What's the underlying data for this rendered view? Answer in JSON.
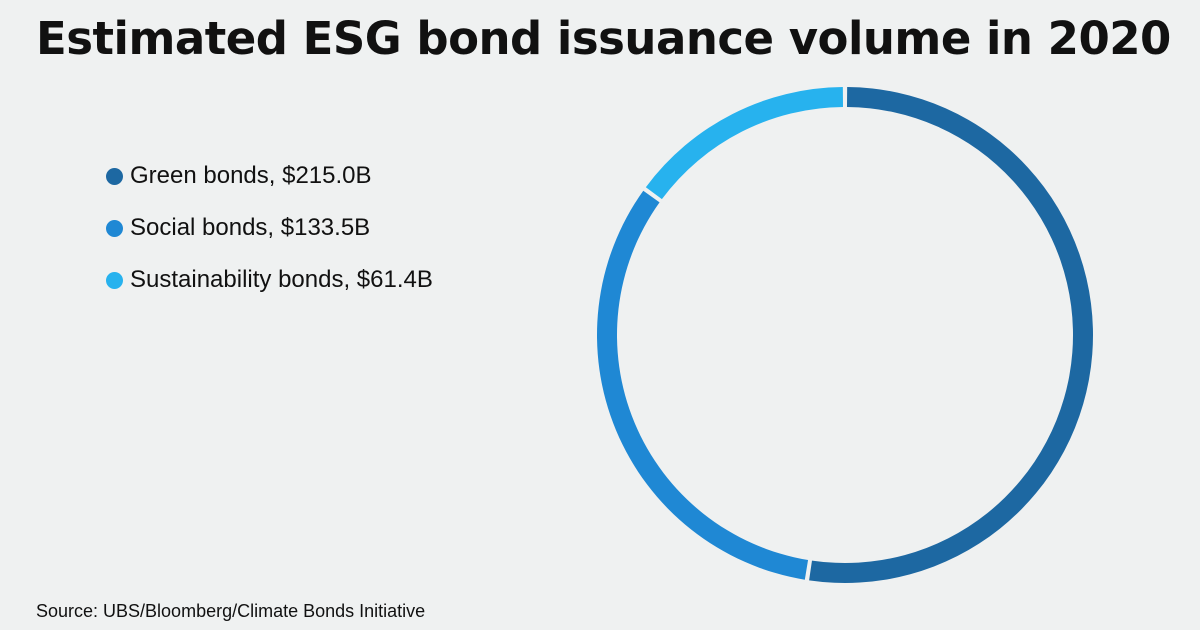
{
  "chart_data": {
    "type": "pie",
    "title": "Estimated ESG bond issuance volume in 2020",
    "source": "Source: UBS/Bloomberg/Climate Bonds Initiative",
    "categories": [
      "Green bonds",
      "Social bonds",
      "Sustainability bonds"
    ],
    "values": [
      215.0,
      133.5,
      61.4
    ],
    "unit": "$B",
    "legend_labels": [
      "Green bonds, $215.0B",
      "Social bonds, $133.5B",
      "Sustainability bonds, $61.4B"
    ],
    "colors": [
      "#1d68a2",
      "#1f88d4",
      "#27b2ee"
    ],
    "donut": true,
    "legend_position": "left"
  }
}
